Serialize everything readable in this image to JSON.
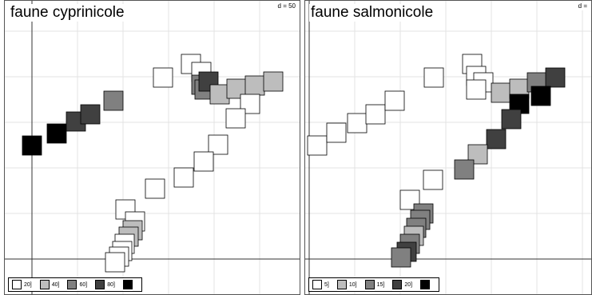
{
  "chart_data": [
    {
      "type": "scatter",
      "title": "faune cyprinicole",
      "scale_label": "d = 50",
      "grid": true,
      "legend_position": "bottom-left",
      "xlim": [
        -10,
        330
      ],
      "ylim": [
        -10,
        300
      ],
      "legend": [
        {
          "label": "20]",
          "color": "#ffffff"
        },
        {
          "label": "40]",
          "color": "#bdbdbd"
        },
        {
          "label": "60]",
          "color": "#808080"
        },
        {
          "label": "80]",
          "color": "#404040"
        },
        {
          "label": "",
          "color": "#000000"
        }
      ],
      "points": [
        {
          "x": 0,
          "y": 142,
          "class": 4
        },
        {
          "x": 31,
          "y": 157,
          "class": 4
        },
        {
          "x": 55,
          "y": 172,
          "class": 3
        },
        {
          "x": 73,
          "y": 181,
          "class": 3
        },
        {
          "x": 102,
          "y": 198,
          "class": 2
        },
        {
          "x": 164,
          "y": 227,
          "class": 0
        },
        {
          "x": 199,
          "y": 244,
          "class": 0
        },
        {
          "x": 212,
          "y": 234,
          "class": 0
        },
        {
          "x": 212,
          "y": 218,
          "class": 2
        },
        {
          "x": 216,
          "y": 212,
          "class": 2
        },
        {
          "x": 221,
          "y": 222,
          "class": 3
        },
        {
          "x": 235,
          "y": 206,
          "class": 1
        },
        {
          "x": 256,
          "y": 213,
          "class": 1
        },
        {
          "x": 279,
          "y": 217,
          "class": 1
        },
        {
          "x": 302,
          "y": 222,
          "class": 1
        },
        {
          "x": 273,
          "y": 194,
          "class": 0
        },
        {
          "x": 255,
          "y": 176,
          "class": 0
        },
        {
          "x": 233,
          "y": 143,
          "class": 0
        },
        {
          "x": 215,
          "y": 122,
          "class": 0
        },
        {
          "x": 190,
          "y": 102,
          "class": 0
        },
        {
          "x": 154,
          "y": 88,
          "class": 0
        },
        {
          "x": 117,
          "y": 62,
          "class": 0
        },
        {
          "x": 129,
          "y": 47,
          "class": 0
        },
        {
          "x": 126,
          "y": 36,
          "class": 1
        },
        {
          "x": 121,
          "y": 28,
          "class": 1
        },
        {
          "x": 116,
          "y": 19,
          "class": 0
        },
        {
          "x": 113,
          "y": 10,
          "class": 0
        },
        {
          "x": 109,
          "y": 3,
          "class": 0
        },
        {
          "x": 104,
          "y": -4,
          "class": 0
        }
      ]
    },
    {
      "type": "scatter",
      "title": "faune salmonicole",
      "scale_label": "d =",
      "grid": true,
      "legend_position": "bottom-left",
      "xlim": [
        -10,
        320
      ],
      "ylim": [
        -10,
        300
      ],
      "legend": [
        {
          "label": "5]",
          "color": "#ffffff"
        },
        {
          "label": "10]",
          "color": "#bdbdbd"
        },
        {
          "label": "15]",
          "color": "#808080"
        },
        {
          "label": "20]",
          "color": "#404040"
        },
        {
          "label": "",
          "color": "#000000"
        }
      ],
      "points": [
        {
          "x": 10,
          "y": 142,
          "class": 0
        },
        {
          "x": 34,
          "y": 158,
          "class": 0
        },
        {
          "x": 60,
          "y": 170,
          "class": 0
        },
        {
          "x": 83,
          "y": 181,
          "class": 0
        },
        {
          "x": 107,
          "y": 198,
          "class": 0
        },
        {
          "x": 156,
          "y": 227,
          "class": 0
        },
        {
          "x": 204,
          "y": 244,
          "class": 0
        },
        {
          "x": 209,
          "y": 229,
          "class": 0
        },
        {
          "x": 218,
          "y": 221,
          "class": 0
        },
        {
          "x": 209,
          "y": 212,
          "class": 0
        },
        {
          "x": 240,
          "y": 208,
          "class": 1
        },
        {
          "x": 263,
          "y": 213,
          "class": 1
        },
        {
          "x": 285,
          "y": 221,
          "class": 2
        },
        {
          "x": 308,
          "y": 227,
          "class": 3
        },
        {
          "x": 290,
          "y": 204,
          "class": 4
        },
        {
          "x": 263,
          "y": 194,
          "class": 4
        },
        {
          "x": 253,
          "y": 175,
          "class": 3
        },
        {
          "x": 234,
          "y": 150,
          "class": 3
        },
        {
          "x": 211,
          "y": 131,
          "class": 1
        },
        {
          "x": 194,
          "y": 112,
          "class": 2
        },
        {
          "x": 155,
          "y": 99,
          "class": 0
        },
        {
          "x": 126,
          "y": 74,
          "class": 0
        },
        {
          "x": 143,
          "y": 57,
          "class": 2
        },
        {
          "x": 139,
          "y": 49,
          "class": 2
        },
        {
          "x": 134,
          "y": 39,
          "class": 2
        },
        {
          "x": 131,
          "y": 29,
          "class": 1
        },
        {
          "x": 126,
          "y": 19,
          "class": 2
        },
        {
          "x": 122,
          "y": 9,
          "class": 3
        },
        {
          "x": 115,
          "y": 2,
          "class": 2
        }
      ]
    }
  ]
}
